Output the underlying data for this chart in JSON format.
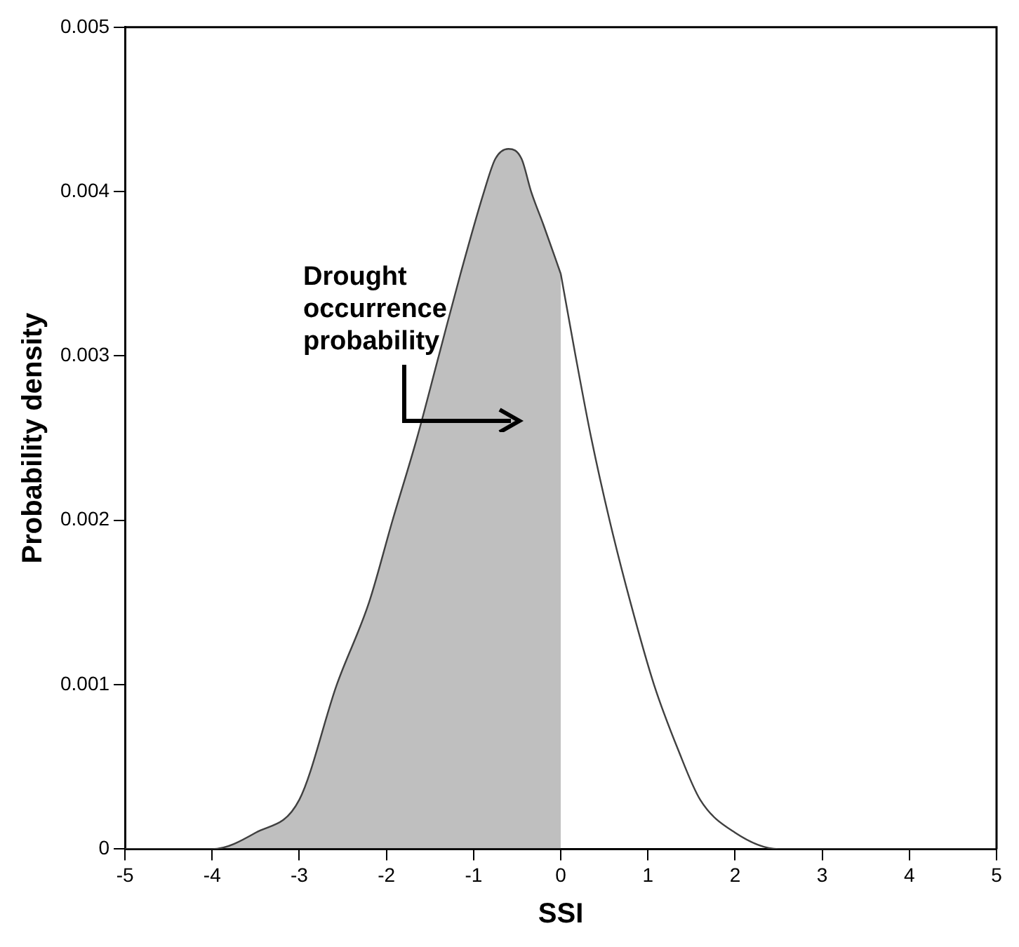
{
  "chart_data": {
    "type": "line",
    "xlabel": "SSI",
    "ylabel": "Probability density",
    "xlim": [
      -5,
      5
    ],
    "xticks": [
      -5,
      -4,
      -3,
      -2,
      -1,
      0,
      1,
      2,
      3,
      4,
      5
    ],
    "ylim": [
      0,
      0.005
    ],
    "yticks": [
      0,
      0.001,
      0.002,
      0.003,
      0.004,
      0.005
    ],
    "grid": false,
    "legend": false,
    "marker": "none",
    "line_style": "solid",
    "series": [
      {
        "type": "area",
        "color": "#404040",
        "x": [
          -5,
          -4.5,
          -4,
          -3.5,
          -3,
          -2.57,
          -2.2,
          -1.93,
          -1.65,
          -1.4,
          -1.15,
          -0.88,
          -0.75,
          -0.6,
          -0.45,
          -0.34,
          -0.2,
          0
        ],
        "values": [
          0,
          0,
          0,
          0.0001,
          0.0003,
          0.001,
          0.0015,
          0.002,
          0.0025,
          0.003,
          0.0035,
          0.004,
          0.0042,
          0.00426,
          0.0042,
          0.004,
          0.0038,
          0.0035
        ]
      },
      {
        "type": "line",
        "color": "#404040",
        "x": [
          0,
          0.17,
          0.35,
          0.56,
          0.8,
          1.07,
          1.35,
          1.6,
          2,
          2.5,
          3,
          4,
          5
        ],
        "values": [
          0.0035,
          0.003,
          0.0025,
          0.002,
          0.0015,
          0.001,
          0.0006,
          0.0003,
          0.0001,
          0,
          0,
          0,
          0
        ]
      }
    ],
    "annotations": [
      "Drought occurrence probability"
    ]
  }
}
